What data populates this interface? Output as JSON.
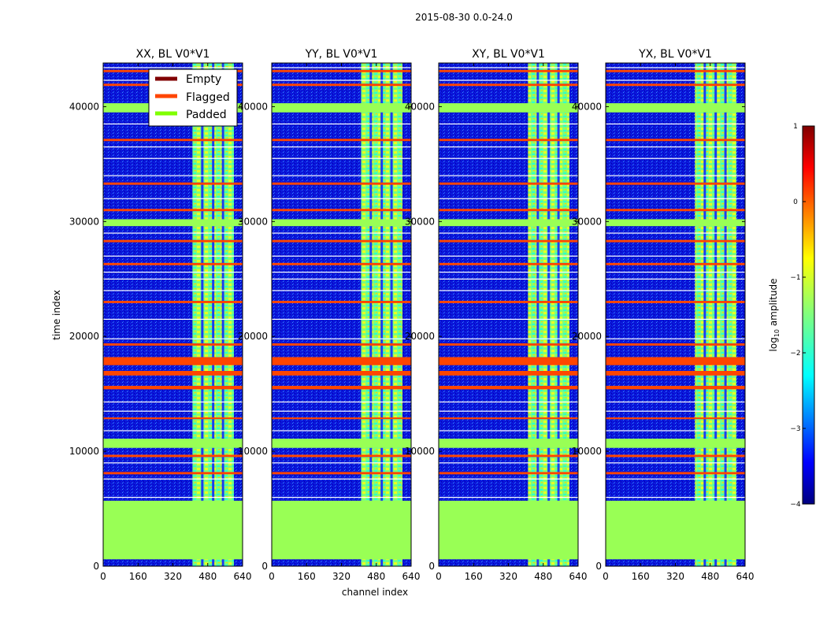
{
  "figure_title": "2015-08-30 0.0-24.0",
  "colors": {
    "empty": "#800000",
    "flagged": "#ff4500",
    "padded": "#7fff00",
    "padded_fill": "#99ff55",
    "background_low": "#0000cc"
  },
  "chart_data": {
    "type": "heatmap",
    "xlabel": "channel index",
    "ylabel": "time index",
    "xlim": [
      0,
      640
    ],
    "ylim": [
      0,
      43800
    ],
    "xticks": [
      0,
      160,
      320,
      480,
      640
    ],
    "yticks": [
      0,
      10000,
      20000,
      30000,
      40000
    ],
    "panels": [
      {
        "title": "XX, BL V0*V1",
        "polarization": "XX"
      },
      {
        "title": "YY, BL V0*V1",
        "polarization": "YY"
      },
      {
        "title": "XY, BL V0*V1",
        "polarization": "XY"
      },
      {
        "title": "YX, BL V0*V1",
        "polarization": "YX"
      }
    ],
    "bright_channel_range": [
      410,
      600
    ],
    "padded_time_range": [
      600,
      5700
    ],
    "flagged_time_bands": [
      [
        17500,
        18200
      ],
      [
        16600,
        17000
      ],
      [
        15400,
        15700
      ],
      [
        19200,
        19400
      ],
      [
        22900,
        23100
      ],
      [
        28200,
        28400
      ],
      [
        30900,
        31100
      ],
      [
        33200,
        33400
      ],
      [
        37000,
        37200
      ],
      [
        41800,
        42000
      ],
      [
        43000,
        43200
      ],
      [
        26200,
        26400
      ],
      [
        8000,
        8200
      ],
      [
        9500,
        9700
      ],
      [
        12800,
        12950
      ]
    ],
    "padded_time_bands": [
      [
        10300,
        10900
      ],
      [
        29600,
        30200
      ],
      [
        39500,
        40300
      ],
      [
        10900,
        11100
      ]
    ],
    "white_time_lines": [
      6000,
      7600,
      9000,
      11800,
      13500,
      14300,
      19800,
      21500,
      24000,
      25000,
      25600,
      27000,
      29000,
      32000,
      34000,
      35500,
      36500,
      38500,
      42300,
      43400
    ],
    "legend": {
      "location": "upper-right of first panel",
      "entries": [
        {
          "label": "Empty",
          "color": "#800000"
        },
        {
          "label": "Flagged",
          "color": "#ff4500"
        },
        {
          "label": "Padded",
          "color": "#7fff00"
        }
      ]
    },
    "colorbar": {
      "label": "log10 amplitude",
      "label_main": "log",
      "label_sub": "10",
      "label_rest": " amplitude",
      "range": [
        -4,
        1
      ],
      "ticks": [
        1,
        0,
        -1,
        -2,
        -3,
        -4
      ],
      "tick_labels": [
        "1",
        "0",
        "−1",
        "−2",
        "−3",
        "−4"
      ],
      "colormap": "jet"
    }
  }
}
